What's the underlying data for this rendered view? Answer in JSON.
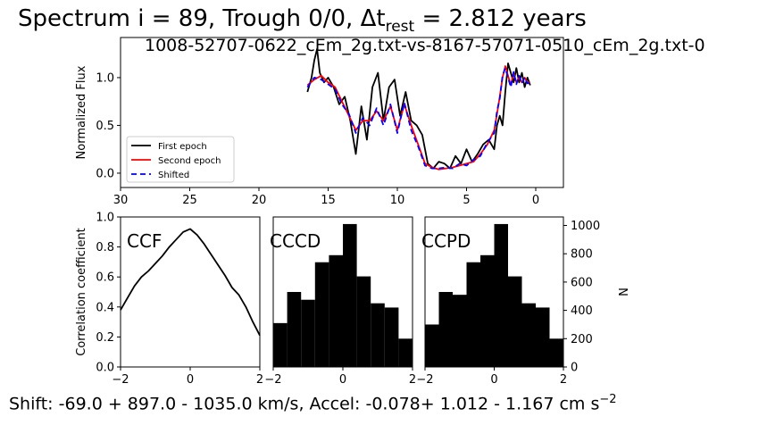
{
  "figure": {
    "title_prefix": "Spectrum i = 89, Trough 0/0, Δt",
    "title_sub": "rest",
    "title_suffix": " = 2.812 years",
    "pair_label": "1008-52707-0622_cEm_2g.txt-vs-8167-57071-0510_cEm_2g.txt-0",
    "footer_main": "Shift: -69.0 + 897.0 - 1035.0 km/s, Accel: -0.078+ 1.012 - 1.167 cm s",
    "footer_sup": "−2"
  },
  "colors": {
    "first_epoch": "#000000",
    "second_epoch": "#ff0000",
    "shifted": "#0000ff",
    "bars": "#000000"
  },
  "chart_data": [
    {
      "type": "line",
      "id": "spectrum",
      "ylabel": "Normalized Flux",
      "xlabel": "",
      "xlim": [
        30,
        -2
      ],
      "ylim": [
        -0.15,
        1.42
      ],
      "xticks": [
        30,
        25,
        20,
        15,
        10,
        5,
        0
      ],
      "yticks": [
        0.0,
        0.5,
        1.0
      ],
      "legend_position": "lower-left",
      "series": [
        {
          "name": "First epoch",
          "style": "solid",
          "x": [
            16.5,
            16.2,
            16.0,
            15.8,
            15.6,
            15.3,
            15.0,
            14.6,
            14.2,
            13.8,
            13.4,
            13.0,
            12.6,
            12.2,
            11.8,
            11.4,
            11.0,
            10.6,
            10.2,
            9.8,
            9.4,
            9.0,
            8.6,
            8.2,
            7.8,
            7.4,
            7.0,
            6.6,
            6.2,
            5.8,
            5.4,
            5.0,
            4.6,
            4.2,
            3.8,
            3.4,
            3.0,
            2.8,
            2.6,
            2.4,
            2.2,
            2.0,
            1.8,
            1.6,
            1.4,
            1.2,
            1.0,
            0.8,
            0.6,
            0.4
          ],
          "y": [
            0.85,
            1.0,
            1.18,
            1.3,
            1.05,
            0.95,
            1.0,
            0.9,
            0.72,
            0.8,
            0.55,
            0.2,
            0.7,
            0.35,
            0.9,
            1.05,
            0.55,
            0.9,
            0.98,
            0.6,
            0.85,
            0.55,
            0.5,
            0.4,
            0.1,
            0.05,
            0.12,
            0.1,
            0.05,
            0.18,
            0.1,
            0.25,
            0.12,
            0.2,
            0.3,
            0.35,
            0.25,
            0.5,
            0.6,
            0.5,
            0.85,
            1.15,
            1.05,
            0.95,
            1.1,
            0.95,
            1.05,
            0.9,
            1.0,
            0.92
          ]
        },
        {
          "name": "Second epoch",
          "style": "solid",
          "x": [
            16.5,
            16.0,
            15.5,
            15.0,
            14.5,
            14.0,
            13.5,
            13.0,
            12.5,
            12.0,
            11.5,
            11.0,
            10.5,
            10.0,
            9.5,
            9.0,
            8.5,
            8.0,
            7.5,
            7.0,
            6.5,
            6.0,
            5.5,
            5.0,
            4.5,
            4.0,
            3.5,
            3.0,
            2.8,
            2.6,
            2.4,
            2.2,
            2.0,
            1.8,
            1.6,
            1.4,
            1.2,
            1.0,
            0.8,
            0.6,
            0.4
          ],
          "y": [
            0.92,
            0.98,
            1.02,
            0.95,
            0.9,
            0.75,
            0.6,
            0.45,
            0.55,
            0.55,
            0.65,
            0.55,
            0.7,
            0.45,
            0.72,
            0.5,
            0.3,
            0.1,
            0.06,
            0.04,
            0.05,
            0.06,
            0.08,
            0.1,
            0.12,
            0.2,
            0.3,
            0.45,
            0.62,
            0.8,
            1.0,
            1.12,
            1.02,
            0.92,
            1.05,
            0.95,
            1.0,
            0.95,
            1.0,
            0.95,
            0.95
          ]
        },
        {
          "name": "Shifted",
          "style": "dashed",
          "x": [
            16.5,
            16.0,
            15.5,
            15.0,
            14.5,
            14.0,
            13.5,
            13.0,
            12.5,
            12.0,
            11.5,
            11.0,
            10.5,
            10.0,
            9.5,
            9.0,
            8.5,
            8.0,
            7.5,
            7.0,
            6.5,
            6.0,
            5.5,
            5.0,
            4.5,
            4.0,
            3.5,
            3.0,
            2.8,
            2.6,
            2.4,
            2.2,
            2.0,
            1.8,
            1.6,
            1.4,
            1.2,
            1.0,
            0.8,
            0.6,
            0.4
          ],
          "y": [
            0.9,
            1.0,
            0.98,
            0.93,
            0.88,
            0.72,
            0.62,
            0.42,
            0.58,
            0.5,
            0.68,
            0.5,
            0.72,
            0.42,
            0.74,
            0.45,
            0.28,
            0.08,
            0.05,
            0.05,
            0.06,
            0.05,
            0.1,
            0.08,
            0.14,
            0.18,
            0.32,
            0.42,
            0.65,
            0.78,
            1.02,
            1.1,
            1.0,
            0.9,
            1.06,
            0.93,
            1.02,
            0.94,
            1.0,
            0.94,
            0.95
          ]
        }
      ]
    },
    {
      "type": "line",
      "id": "ccf",
      "title": "CCF",
      "ylabel": "Correlation coefficient",
      "xlim": [
        -2,
        2
      ],
      "ylim": [
        0.0,
        1.0
      ],
      "xticks": [
        -2,
        0,
        2
      ],
      "yticks": [
        0.0,
        0.2,
        0.4,
        0.6,
        0.8,
        1.0
      ],
      "x": [
        -2.0,
        -1.8,
        -1.6,
        -1.4,
        -1.2,
        -1.0,
        -0.8,
        -0.6,
        -0.4,
        -0.2,
        0.0,
        0.2,
        0.4,
        0.6,
        0.8,
        1.0,
        1.2,
        1.4,
        1.6,
        1.8,
        2.0
      ],
      "y": [
        0.38,
        0.46,
        0.54,
        0.6,
        0.64,
        0.69,
        0.74,
        0.8,
        0.85,
        0.9,
        0.92,
        0.88,
        0.82,
        0.75,
        0.68,
        0.61,
        0.53,
        0.48,
        0.4,
        0.3,
        0.21
      ]
    },
    {
      "type": "bar",
      "id": "cccd",
      "title": "CCCD",
      "xlim": [
        -2,
        2
      ],
      "ylim": [
        0,
        1060
      ],
      "xticks": [
        -2,
        0,
        2
      ],
      "bin_edges": [
        -2.0,
        -1.6,
        -1.2,
        -0.8,
        -0.4,
        0.0,
        0.4,
        0.8,
        1.2,
        1.6,
        2.0
      ],
      "values": [
        310,
        530,
        475,
        740,
        790,
        1010,
        640,
        450,
        420,
        200
      ]
    },
    {
      "type": "bar",
      "id": "ccpd",
      "title": "CCPD",
      "ylabel": "N",
      "xlim": [
        -2,
        2
      ],
      "ylim": [
        0,
        1060
      ],
      "xticks": [
        -2,
        0,
        2
      ],
      "yticks": [
        0,
        200,
        400,
        600,
        800,
        1000
      ],
      "bin_edges": [
        -2.0,
        -1.6,
        -1.2,
        -0.8,
        -0.4,
        0.0,
        0.4,
        0.8,
        1.2,
        1.6,
        2.0
      ],
      "values": [
        300,
        530,
        510,
        740,
        790,
        1010,
        640,
        450,
        420,
        200
      ]
    }
  ]
}
